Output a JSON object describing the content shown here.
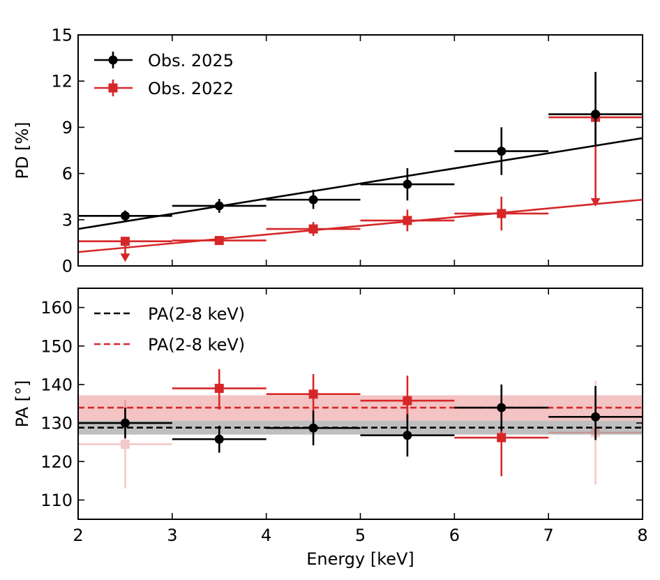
{
  "chart_data": [
    {
      "type": "scatter",
      "title": "",
      "xlabel": "",
      "ylabel": "PD [%]",
      "xlim": [
        2,
        8
      ],
      "ylim": [
        0,
        15
      ],
      "xticks": [
        2,
        3,
        4,
        5,
        6,
        7,
        8
      ],
      "yticks": [
        0,
        3,
        6,
        9,
        12,
        15
      ],
      "ytick_labels": [
        "0",
        "3",
        "6",
        "9",
        "12",
        "15"
      ],
      "legend_position": "top-left",
      "series": [
        {
          "name": "Obs. 2025",
          "color": "#000000",
          "marker": "circle",
          "x": [
            2.5,
            3.5,
            4.5,
            5.5,
            6.5,
            7.5
          ],
          "xerr": [
            0.5,
            0.5,
            0.5,
            0.5,
            0.5,
            0.5
          ],
          "y": [
            3.25,
            3.9,
            4.3,
            5.3,
            7.45,
            9.85
          ],
          "yerr_low": [
            0.35,
            0.45,
            0.6,
            1.05,
            1.55,
            2.1
          ],
          "yerr_high": [
            0.35,
            0.45,
            0.65,
            1.05,
            1.55,
            2.75
          ],
          "upper_limit": [
            false,
            false,
            false,
            false,
            false,
            false
          ],
          "trend": {
            "x": [
              2,
              8
            ],
            "y": [
              2.4,
              8.3
            ]
          }
        },
        {
          "name": "Obs. 2022",
          "color": "#d62728",
          "marker": "square",
          "x": [
            2.5,
            3.5,
            4.5,
            5.5,
            6.5,
            7.5
          ],
          "xerr": [
            0.5,
            0.5,
            0.5,
            0.5,
            0.5,
            0.5
          ],
          "y": [
            1.6,
            1.65,
            2.4,
            2.95,
            3.4,
            9.65
          ],
          "yerr_low": [
            0,
            0.2,
            0.45,
            0.7,
            1.1,
            0
          ],
          "yerr_high": [
            0,
            0.2,
            0.45,
            0.7,
            1.1,
            0
          ],
          "upper_limit": [
            true,
            false,
            false,
            false,
            false,
            true
          ],
          "limit_arrow_to": [
            0.35,
            null,
            null,
            null,
            null,
            3.95
          ],
          "trend": {
            "x": [
              2,
              8
            ],
            "y": [
              0.9,
              4.3
            ]
          }
        }
      ]
    },
    {
      "type": "scatter",
      "title": "",
      "xlabel": "Energy [keV]",
      "ylabel": "PA [°]",
      "xlim": [
        2,
        8
      ],
      "ylim": [
        105,
        165
      ],
      "xticks": [
        2,
        3,
        4,
        5,
        6,
        7,
        8
      ],
      "xtick_labels": [
        "2",
        "3",
        "4",
        "5",
        "6",
        "7",
        "8"
      ],
      "yticks": [
        110,
        120,
        130,
        140,
        150,
        160
      ],
      "ytick_labels": [
        "110",
        "120",
        "130",
        "140",
        "150",
        "160"
      ],
      "legend_position": "top-left",
      "reference_lines": [
        {
          "name": "PA(2-8 keV)",
          "color": "#000000",
          "value": 128.8,
          "band": [
            127.0,
            130.6
          ]
        },
        {
          "name": "PA(2-8 keV)",
          "color": "#d62728",
          "value": 134.0,
          "band": [
            130.6,
            137.2
          ]
        }
      ],
      "series": [
        {
          "name": "Obs. 2025",
          "color": "#000000",
          "marker": "circle",
          "x": [
            2.5,
            3.5,
            4.5,
            5.5,
            6.5,
            7.5
          ],
          "xerr": [
            0.5,
            0.5,
            0.5,
            0.5,
            0.5,
            0.5
          ],
          "y": [
            130.0,
            125.8,
            128.7,
            126.8,
            134.0,
            131.6
          ],
          "yerr_low": [
            4.0,
            3.5,
            4.5,
            5.5,
            6.0,
            6.0
          ],
          "yerr_high": [
            4.0,
            3.5,
            4.5,
            5.5,
            6.0,
            8.0
          ],
          "faded": [
            false,
            false,
            false,
            false,
            false,
            false
          ]
        },
        {
          "name": "Obs. 2022",
          "color": "#d62728",
          "marker": "square",
          "x": [
            2.5,
            3.5,
            4.5,
            5.5,
            6.5,
            7.5
          ],
          "xerr": [
            0.5,
            0.5,
            0.5,
            0.5,
            0.5,
            0.5
          ],
          "y": [
            124.5,
            139.0,
            137.5,
            135.8,
            126.2,
            127.5
          ],
          "yerr_low": [
            11.5,
            5.5,
            5.5,
            5.0,
            10.0,
            13.5
          ],
          "yerr_high": [
            11.5,
            5.0,
            5.2,
            6.5,
            10.0,
            13.5
          ],
          "faded": [
            true,
            false,
            false,
            false,
            false,
            true
          ]
        }
      ]
    }
  ]
}
